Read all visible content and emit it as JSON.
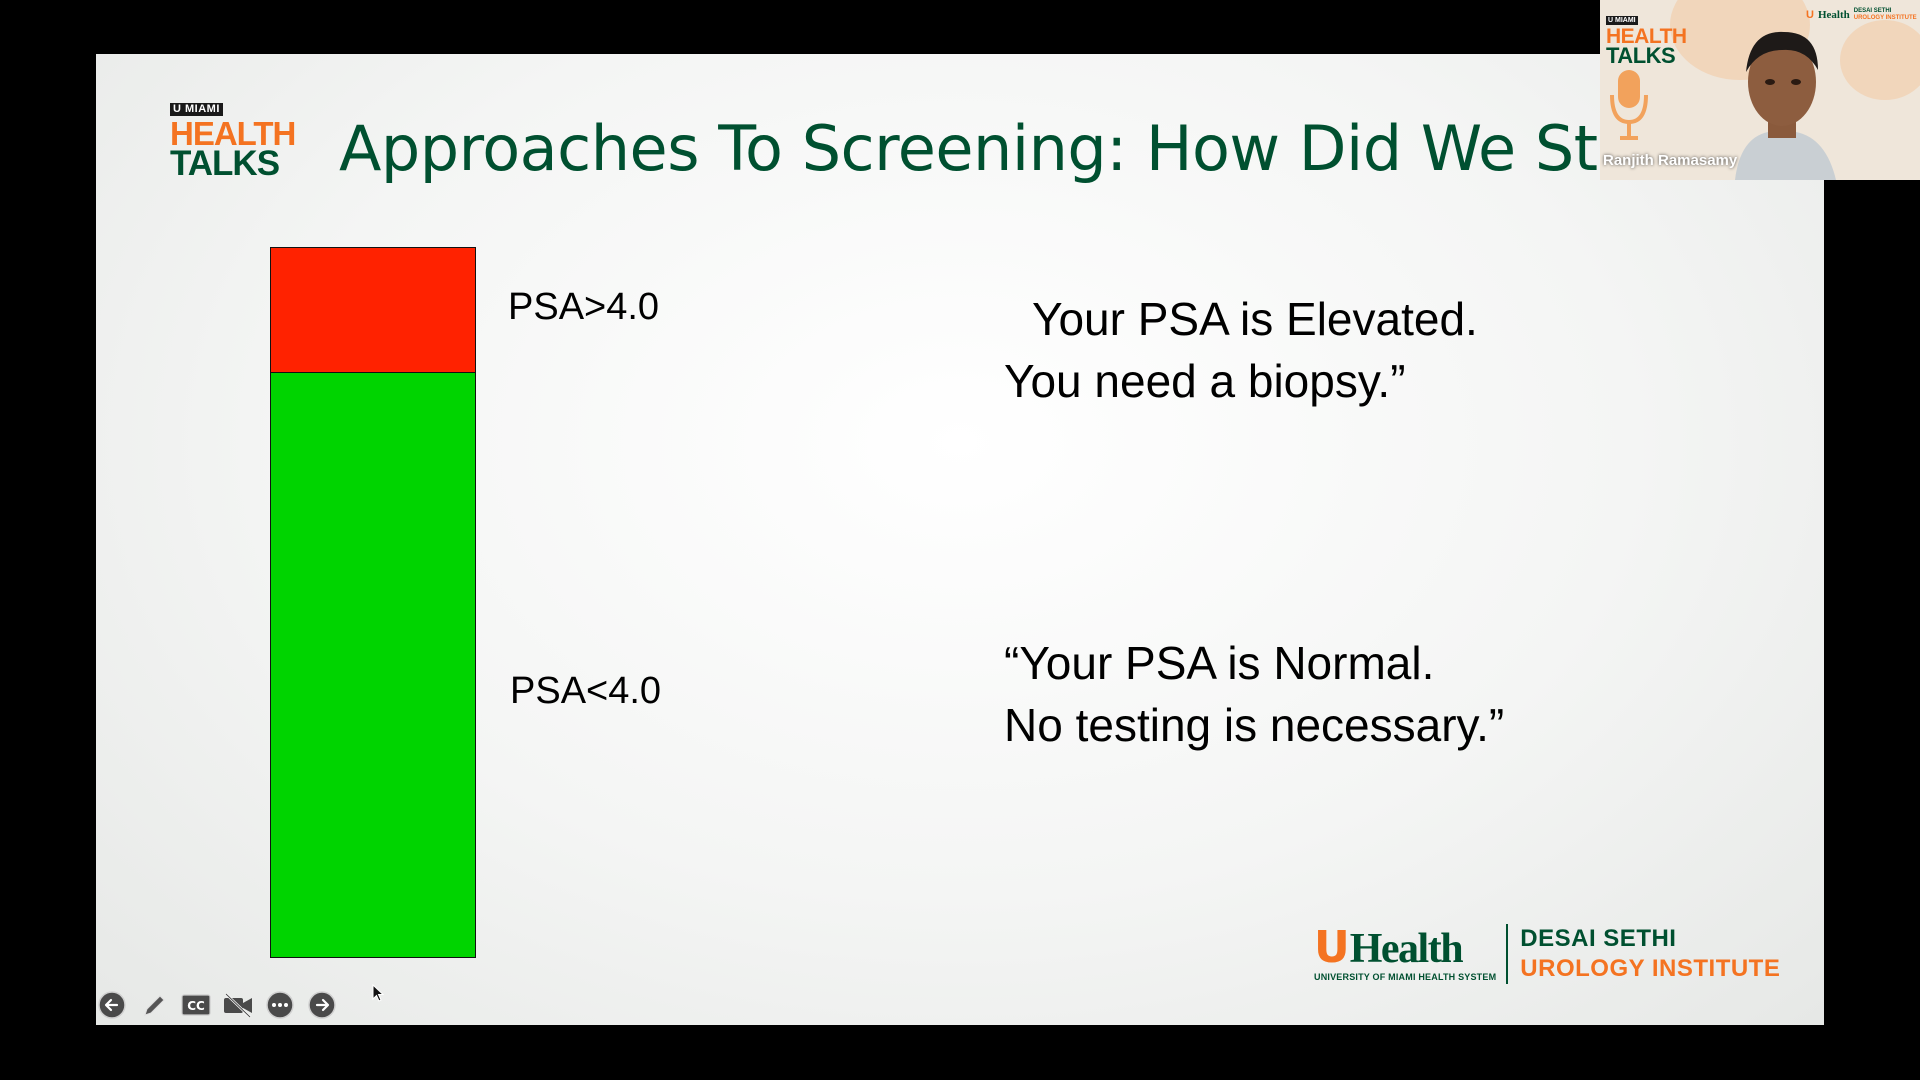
{
  "slide": {
    "logo": {
      "tag": "U MIAMI",
      "line1": "HEALTH",
      "line2": "TALKS"
    },
    "title": "Approaches To Screening: How Did We Start?",
    "chart_data": {
      "type": "bar",
      "orientation": "vertical-stacked",
      "threshold": 4.0,
      "segments": [
        {
          "name": "PSA>4.0",
          "color": "#ff2200",
          "label": "PSA>4.0"
        },
        {
          "name": "PSA<4.0",
          "color": "#00d400",
          "label": "PSA<4.0"
        }
      ]
    },
    "labels": {
      "high": "PSA>4.0",
      "low": "PSA<4.0"
    },
    "quotes": {
      "high_line1": "Your PSA is Elevated.",
      "high_line2": "You need a biopsy.”",
      "low_line1": "“Your PSA is Normal.",
      "low_line2": "No testing is necessary.”"
    },
    "brand": {
      "u": "U",
      "health": "Health",
      "sub": "UNIVERSITY OF MIAMI HEALTH SYSTEM",
      "inst_line1": "DESAI SETHI",
      "inst_line2": "UROLOGY INSTITUTE"
    }
  },
  "controls": [
    {
      "name": "previous-slide-button",
      "icon": "arrow-left-icon"
    },
    {
      "name": "pen-tool-button",
      "icon": "pen-icon"
    },
    {
      "name": "captions-button",
      "icon": "cc-icon"
    },
    {
      "name": "camera-toggle-button",
      "icon": "video-off-icon"
    },
    {
      "name": "more-options-button",
      "icon": "more-icon"
    },
    {
      "name": "next-slide-button",
      "icon": "arrow-right-icon"
    }
  ],
  "webcam": {
    "speaker_name": "Ranjith Ramasamy",
    "logo": {
      "tag": "U MIAMI",
      "line1": "HEALTH",
      "line2": "TALKS"
    },
    "brand": {
      "u": "U",
      "health": "Health",
      "inst_line1": "DESAI SETHI",
      "inst_line2": "UROLOGY INSTITUTE"
    }
  }
}
